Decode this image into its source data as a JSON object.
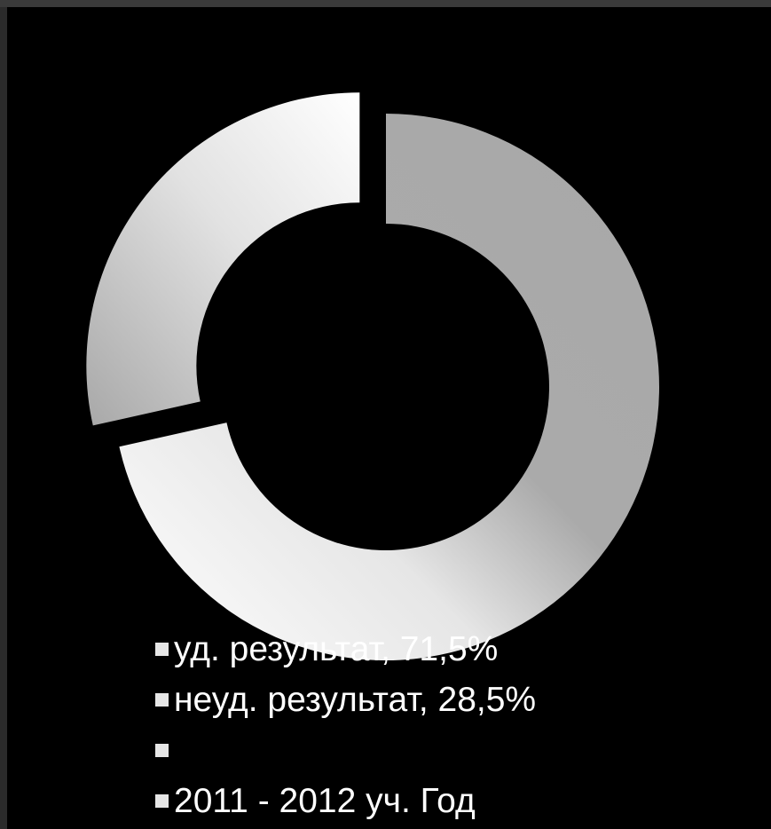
{
  "chart_data": {
    "type": "pie",
    "subtype": "doughnut-exploded",
    "title": "",
    "series": [
      {
        "name": "2011 - 2012 уч. Год",
        "slices": [
          {
            "label": "уд. результат",
            "value": 71.5,
            "color": "#b0b0b0"
          },
          {
            "label": "неуд. результат",
            "value": 28.5,
            "color": "#d8d8d8"
          }
        ]
      }
    ],
    "legend": {
      "placement": "bottom",
      "entries": [
        "уд. результат, 71,5%",
        "неуд. результат, 28,5%",
        "",
        "2011 - 2012 уч. Год"
      ]
    }
  },
  "colors": {
    "background": "#000000",
    "legend_text": "#ffffff",
    "swatch": "#e6e6e6"
  }
}
